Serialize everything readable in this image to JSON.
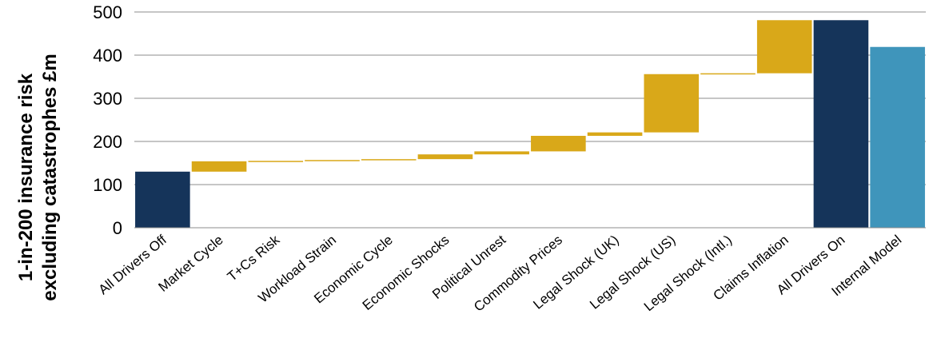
{
  "chart_data": {
    "type": "bar",
    "subtype": "waterfall",
    "title": "",
    "ylabel_lines": [
      "1-in-200 insurance risk",
      "excluding catastrophes £m"
    ],
    "xlabel": "",
    "ylim": [
      0,
      500
    ],
    "yticks": [
      0,
      100,
      200,
      300,
      400,
      500
    ],
    "grid": true,
    "legend": "none",
    "categories": [
      "All Drivers Off",
      "Market Cycle",
      "T+Cs Risk",
      "Workload Strain",
      "Economic Cycle",
      "Economic Shocks",
      "Political Unrest",
      "Commodity Prices",
      "Legal Shock (UK)",
      "Legal Shock (US)",
      "Legal Shock (Intl.)",
      "Claims Inflation",
      "All Drivers On",
      "Internal Model"
    ],
    "bars": [
      {
        "kind": "total",
        "start": 0,
        "end": 130
      },
      {
        "kind": "step",
        "start": 130,
        "end": 154
      },
      {
        "kind": "step",
        "start": 154,
        "end": 155
      },
      {
        "kind": "step",
        "start": 155,
        "end": 157
      },
      {
        "kind": "step",
        "start": 157,
        "end": 159
      },
      {
        "kind": "step",
        "start": 159,
        "end": 170
      },
      {
        "kind": "step",
        "start": 170,
        "end": 177
      },
      {
        "kind": "step",
        "start": 177,
        "end": 213
      },
      {
        "kind": "step",
        "start": 213,
        "end": 221
      },
      {
        "kind": "step",
        "start": 221,
        "end": 356
      },
      {
        "kind": "step",
        "start": 356,
        "end": 358
      },
      {
        "kind": "step",
        "start": 358,
        "end": 481
      },
      {
        "kind": "total",
        "start": 0,
        "end": 481
      },
      {
        "kind": "model",
        "start": 0,
        "end": 419
      }
    ],
    "colors": {
      "total": "#15345a",
      "step": "#d9a819",
      "model": "#3f95bb",
      "grid": "#8c8c8c",
      "axis": "#8c8c8c"
    }
  }
}
